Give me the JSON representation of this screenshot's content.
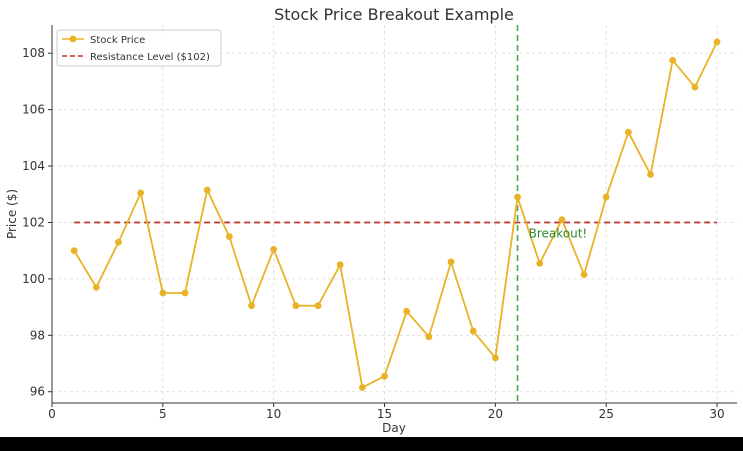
{
  "chart_data": {
    "type": "line",
    "title": "Stock Price Breakout Example",
    "xlabel": "Day",
    "ylabel": "Price ($)",
    "xlim": [
      0,
      30.9
    ],
    "ylim": [
      95.6,
      109
    ],
    "x_ticks": [
      0,
      5,
      10,
      15,
      20,
      25,
      30
    ],
    "y_ticks": [
      96,
      98,
      100,
      102,
      104,
      106,
      108
    ],
    "grid": true,
    "legend_position": "top-left",
    "series": [
      {
        "name": "Stock Price",
        "color": "#e8b326",
        "marker": "circle",
        "x": [
          1,
          2,
          3,
          4,
          5,
          6,
          7,
          8,
          9,
          10,
          11,
          12,
          13,
          14,
          15,
          16,
          17,
          18,
          19,
          20,
          21,
          22,
          23,
          24,
          25,
          26,
          27,
          28,
          29,
          30
        ],
        "y": [
          101.0,
          99.7,
          101.3,
          103.05,
          99.5,
          99.5,
          103.15,
          101.5,
          99.05,
          101.05,
          99.05,
          99.05,
          100.5,
          96.15,
          96.55,
          98.85,
          97.95,
          100.6,
          98.15,
          97.2,
          102.9,
          100.55,
          102.1,
          100.15,
          102.9,
          105.2,
          103.7,
          107.75,
          106.8,
          108.4
        ]
      }
    ],
    "reference_lines": [
      {
        "name": "Resistance Level ($102)",
        "orientation": "horizontal",
        "value": 102,
        "x_range": [
          1,
          30
        ],
        "color": "#c0312b",
        "style": "dashed"
      },
      {
        "name": "",
        "orientation": "vertical",
        "value": 21,
        "color": "#4aa74a",
        "style": "dashed"
      }
    ],
    "annotations": [
      {
        "text": "Breakout!",
        "x": 21.5,
        "y": 101.6,
        "color": "#2e8b2e"
      }
    ]
  }
}
